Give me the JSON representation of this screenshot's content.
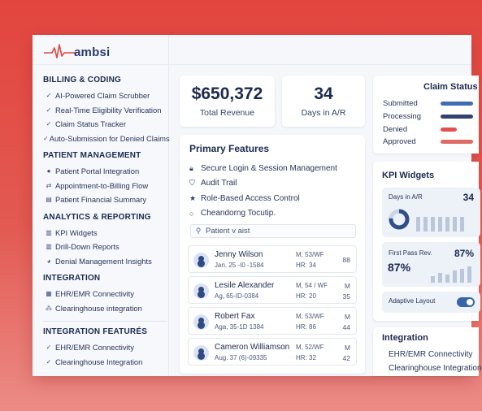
{
  "brand": {
    "name": "ambsi"
  },
  "sidebar": {
    "sections": [
      {
        "heading": "BILLING & CODING",
        "items": [
          {
            "label": "AI-Powered Claim Scrubber",
            "icon": "check-icon"
          },
          {
            "label": "Real-Time Eligibility Verification",
            "icon": "check-icon"
          },
          {
            "label": "Claim Status Tracker",
            "icon": "check-icon"
          },
          {
            "label": "Auto-Submission for Denied Claims",
            "icon": "check-icon"
          }
        ]
      },
      {
        "heading": "PATIENT MANAGEMENT",
        "items": [
          {
            "label": "Patient Portal Integration",
            "icon": "user-icon"
          },
          {
            "label": "Appointment-to-Billing Flow",
            "icon": "flow-icon"
          },
          {
            "label": "Patient Financial Summary",
            "icon": "document-icon"
          }
        ]
      },
      {
        "heading": "ANALYTICS & REPORTING",
        "items": [
          {
            "label": "KPI Widgets",
            "icon": "bar-chart-icon"
          },
          {
            "label": "Drill-Down Reports",
            "icon": "bar-chart-icon"
          },
          {
            "label": "Denial Management Insights",
            "icon": "pie-chart-icon"
          }
        ]
      },
      {
        "heading": "INTEGRATION",
        "items": [
          {
            "label": "EHR/EMR Connectivity",
            "icon": "grid-icon"
          },
          {
            "label": "Clearinghouse integration",
            "icon": "network-icon"
          }
        ]
      },
      {
        "heading": "INTEGRATION FEATURÉS",
        "items": [
          {
            "label": "EHR/EMR Connectivity",
            "icon": "check-icon"
          },
          {
            "label": "Clearinghouse Integration",
            "icon": "check-icon"
          }
        ]
      }
    ]
  },
  "kpis": [
    {
      "value": "$650,372",
      "label": "Total Revenue"
    },
    {
      "value": "34",
      "label": "Days in A/R"
    }
  ],
  "features": {
    "title": "Primary Features",
    "items": [
      {
        "label": "Secure Login & Session Management",
        "icon": "lock-icon"
      },
      {
        "label": "Audit Trail",
        "icon": "shield-icon"
      },
      {
        "label": "Role-Based Access Control",
        "icon": "star-icon"
      },
      {
        "label": "Cheandorng Tocutip.",
        "icon": "circle-icon"
      }
    ],
    "search_placeholder": "Patient v aist"
  },
  "patients": [
    {
      "name": "Jenny Wilson",
      "sub": "Jan. 25 -I0 -1584",
      "meta1": "M, 53/WF",
      "meta2": "HR: 34",
      "right_top": "",
      "right_mid": "88"
    },
    {
      "name": "Lesile Alexander",
      "sub": "Ag, 65-ID-0384",
      "meta1": "M, 54 / WF",
      "meta2": "HR: 20",
      "right_top": "M",
      "right_mid": "35"
    },
    {
      "name": "Robert Fax",
      "sub": "Aga, 35-1D 1384",
      "meta1": "M, 53/WF",
      "meta2": "HR: 86",
      "right_top": "M",
      "right_mid": "44"
    },
    {
      "name": "Cameron Williamson",
      "sub": "Aug. 37 (6)-09335",
      "meta1": "M, 52/WF",
      "meta2": "HR: 32",
      "right_top": "M",
      "right_mid": "42"
    }
  ],
  "claim_status": {
    "title": "Claim Status",
    "rows": [
      {
        "label": "Submitted",
        "color": "#3d6eb3"
      },
      {
        "label": "Processing",
        "color": "#34436e"
      },
      {
        "label": "Denied",
        "color": "#e25050"
      },
      {
        "label": "Approved",
        "color": "#e06a66"
      }
    ]
  },
  "kpi_widgets": {
    "title": "KPI Widgets",
    "days_label": "Days in A/R",
    "days_value": "34",
    "fpr_label": "First Pass Rev.",
    "fpr_value": "87%",
    "fpr_big": "87%",
    "adaptive_label": "Adaptive Layout",
    "adaptive_on": true
  },
  "integration": {
    "title": "Integration",
    "items": [
      "EHR/EMR Connectivity",
      "Clearinghouse Integration"
    ]
  },
  "colors": {
    "accent": "#e2453e",
    "navy": "#1b2a4e",
    "blue": "#3a64a8"
  }
}
